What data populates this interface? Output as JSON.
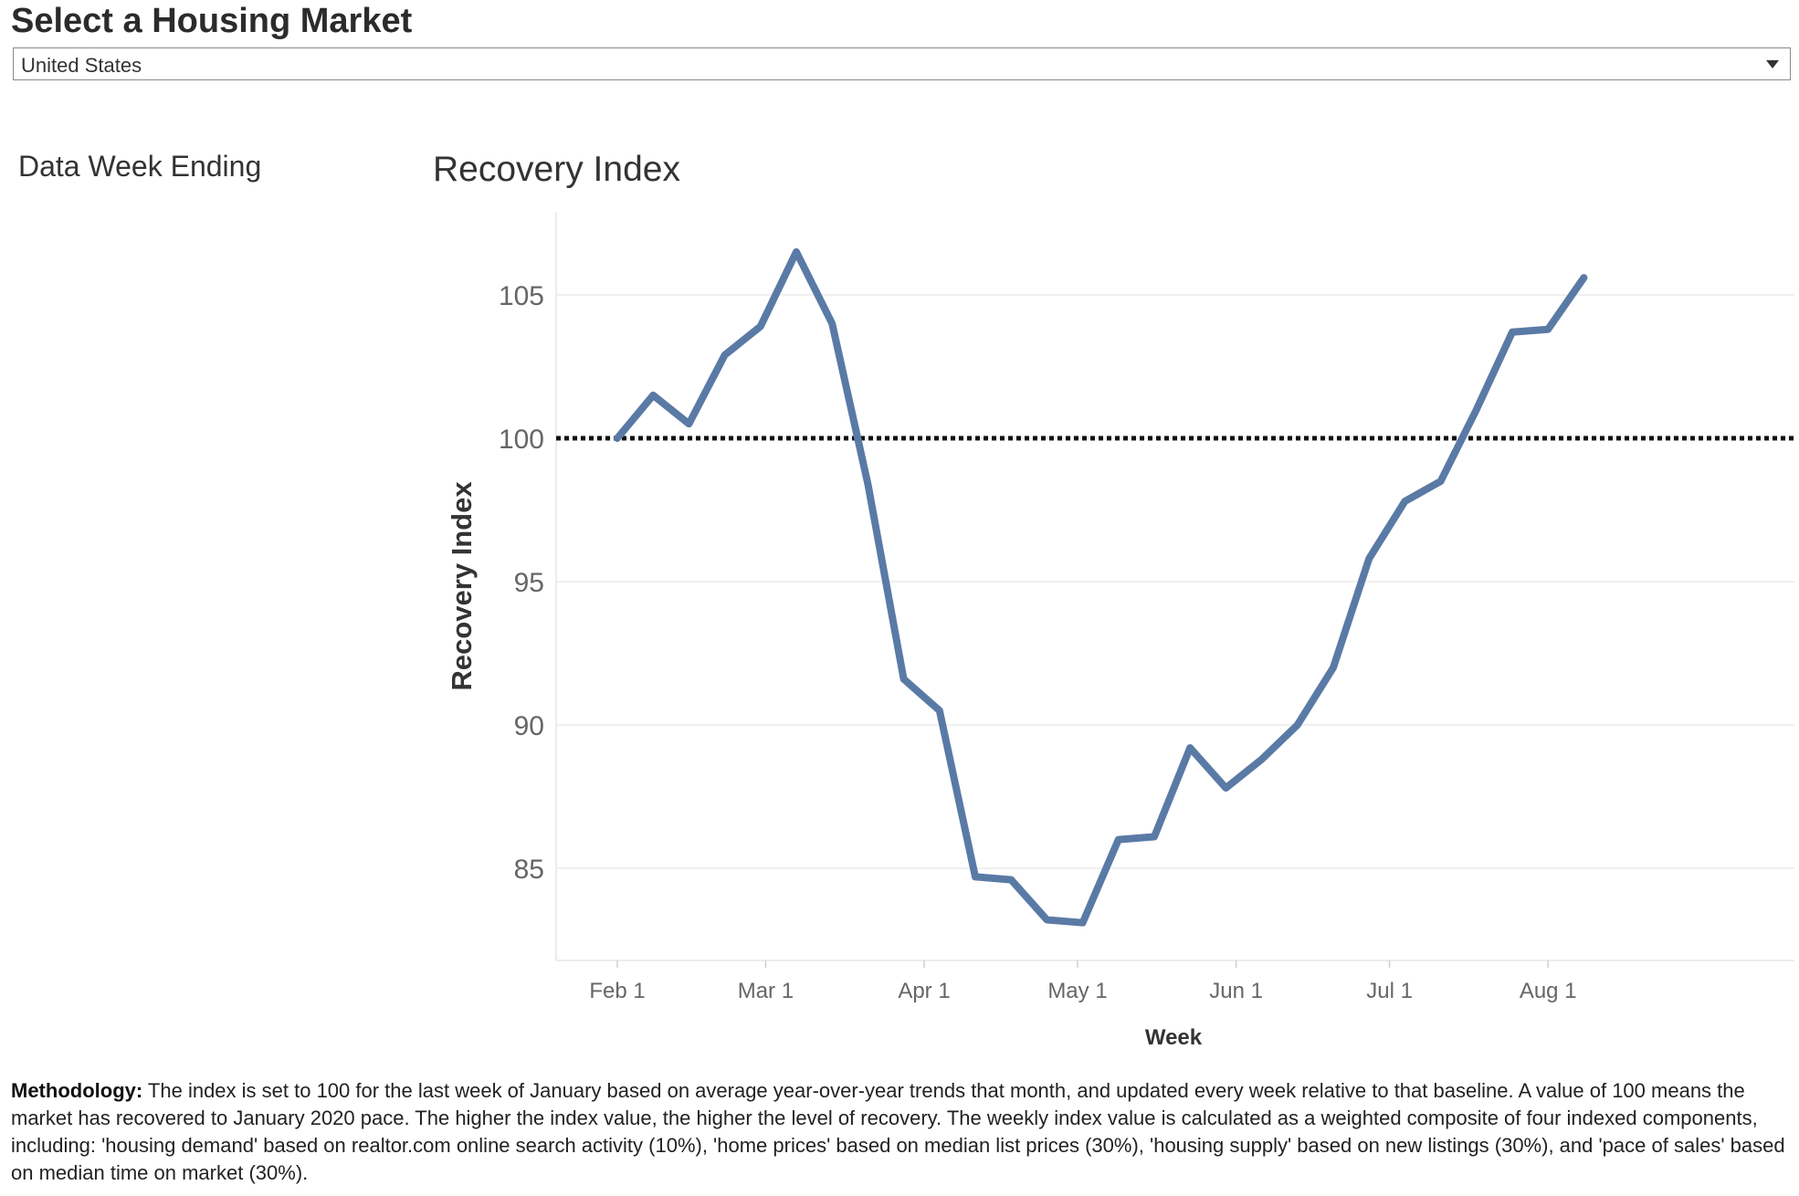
{
  "header": {
    "title": "Select a Housing Market"
  },
  "market_select": {
    "value": "United States"
  },
  "sidebar": {
    "label": "Data Week Ending"
  },
  "chart_data": {
    "type": "line",
    "title": "Recovery Index",
    "xlabel": "Week",
    "ylabel": "Recovery Index",
    "x_ticks": [
      "Feb 1",
      "Mar 1",
      "Apr 1",
      "May 1",
      "Jun 1",
      "Jul 1",
      "Aug 1"
    ],
    "y_ticks": [
      85,
      90,
      95,
      100,
      105
    ],
    "ylim": [
      81,
      107.5
    ],
    "reference_line": {
      "value": 100,
      "style": "dotted",
      "color": "#111111"
    },
    "grid": true,
    "line_color": "#5a7aa6",
    "series": [
      {
        "x": [
          "Feb 1",
          "Feb 8",
          "Feb 15",
          "Feb 22",
          "Feb 29",
          "Mar 7",
          "Mar 14",
          "Mar 21",
          "Mar 28",
          "Apr 4",
          "Apr 11",
          "Apr 18",
          "Apr 25",
          "May 2",
          "May 9",
          "May 16",
          "May 23",
          "May 30",
          "Jun 6",
          "Jun 13",
          "Jun 20",
          "Jun 27",
          "Jul 4",
          "Jul 11",
          "Jul 18",
          "Jul 25",
          "Aug 1",
          "Aug 8"
        ],
        "values": [
          100.0,
          101.5,
          100.5,
          102.9,
          103.9,
          106.5,
          104.0,
          98.4,
          91.6,
          90.5,
          84.7,
          84.6,
          83.2,
          83.1,
          86.0,
          86.1,
          89.2,
          87.8,
          88.8,
          90.0,
          92.0,
          95.8,
          97.8,
          98.5,
          101.0,
          103.7,
          103.8,
          105.6
        ]
      }
    ]
  },
  "methodology": {
    "label": "Methodology:",
    "text": " The index is set to 100 for the last week of January based on average year-over-year trends that month, and updated every week relative to that baseline. A value of 100 means the market has recovered to January 2020 pace. The higher the index value, the higher the level of recovery. The weekly index value is calculated as a weighted composite of four indexed components, including: 'housing demand' based on realtor.com online search activity (10%), 'home prices' based on median list prices (30%), 'housing supply' based on new listings (30%), and 'pace of sales' based on median time on market (30%)."
  }
}
